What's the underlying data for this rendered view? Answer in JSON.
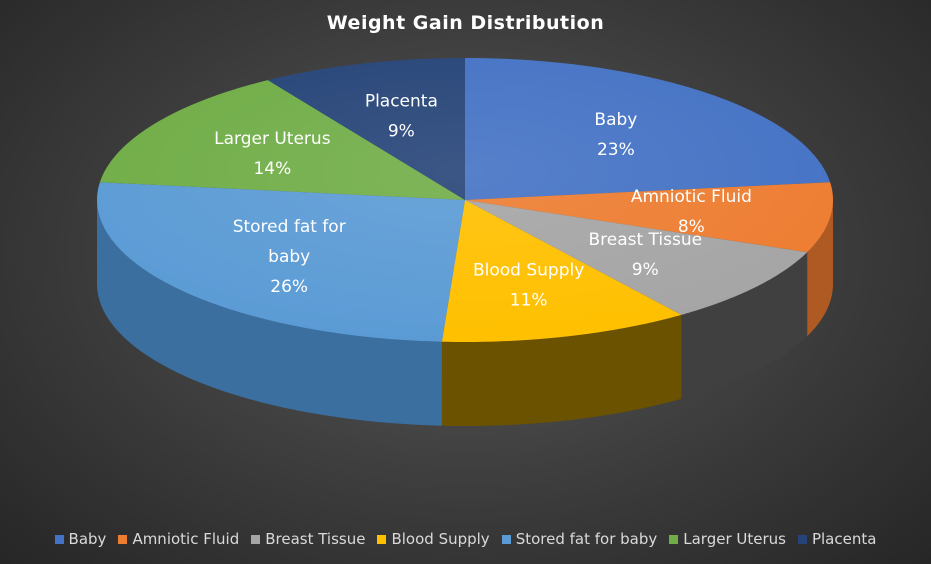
{
  "chart_data": {
    "type": "pie",
    "title": "Weight Gain Distribution",
    "style": "3d",
    "legend_position": "bottom",
    "slices": [
      {
        "label": "Baby",
        "value": 23,
        "display": "23%",
        "color": "#4472c4",
        "side_color": "#2e5394",
        "label_color": "#ffffff",
        "label_lines": [
          "Baby"
        ]
      },
      {
        "label": "Amniotic Fluid",
        "value": 8,
        "display": "8%",
        "color": "#ed7d31",
        "side_color": "#ae5a22",
        "label_color": "#ffffff",
        "label_lines": [
          "Amniotic Fluid"
        ]
      },
      {
        "label": "Breast Tissue",
        "value": 9,
        "display": "9%",
        "color": "#a5a5a5",
        "side_color": "#404040",
        "label_color": "#ffffff",
        "label_lines": [
          "Breast Tissue"
        ]
      },
      {
        "label": "Blood Supply",
        "value": 11,
        "display": "11%",
        "color": "#ffc000",
        "side_color": "#6b5200",
        "label_color": "#ffffff",
        "label_lines": [
          "Blood Supply"
        ]
      },
      {
        "label": "Stored fat for baby",
        "value": 26,
        "display": "26%",
        "color": "#5b9bd5",
        "side_color": "#3a6f9f",
        "label_color": "#ffffff",
        "label_lines": [
          "Stored fat for",
          "baby"
        ]
      },
      {
        "label": "Larger Uterus",
        "value": 14,
        "display": "14%",
        "color": "#70ad47",
        "side_color": "#4e7d31",
        "label_color": "#ffffff",
        "label_lines": [
          "Larger Uterus"
        ]
      },
      {
        "label": "Placenta",
        "value": 9,
        "display": "9%",
        "color": "#264478",
        "side_color": "#1a2f54",
        "label_color": "#ffffff",
        "label_lines": [
          "Placenta"
        ]
      }
    ]
  }
}
